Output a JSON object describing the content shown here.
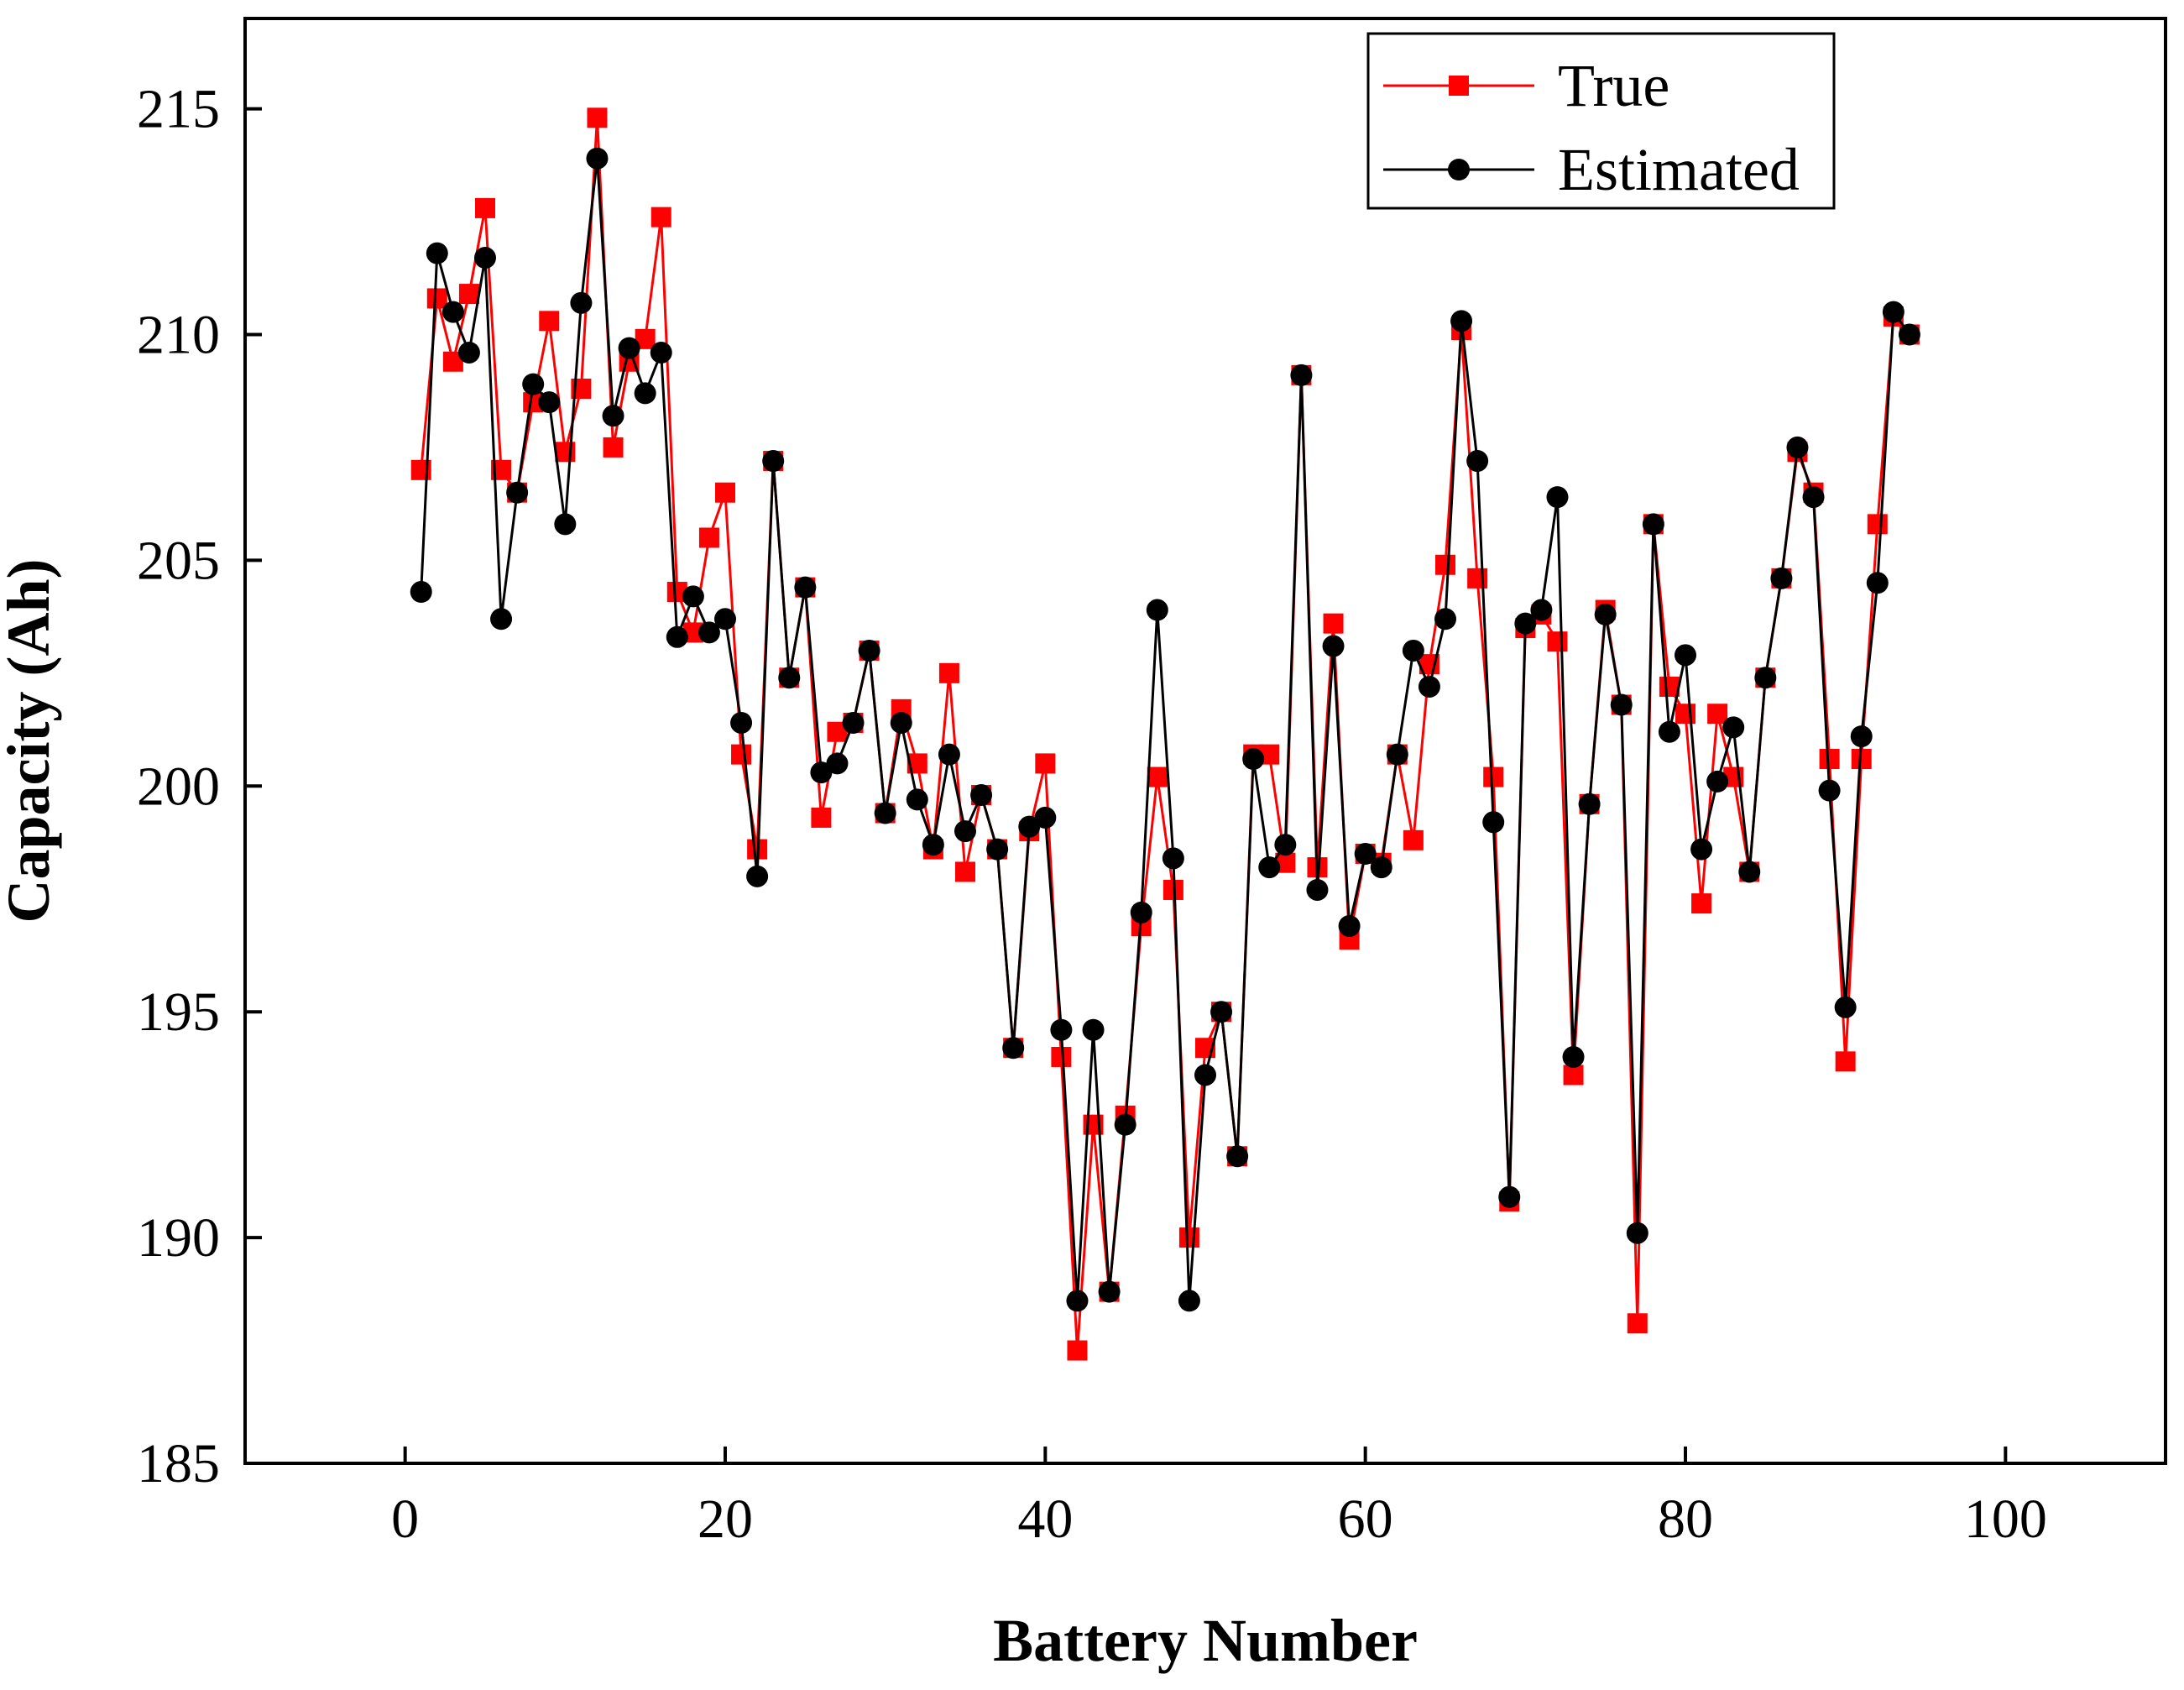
{
  "chart_data": {
    "type": "line",
    "title": "",
    "xlabel": "Battery Number",
    "ylabel": "Capacity (Ah)",
    "xlim": [
      -10,
      110
    ],
    "ylim": [
      185,
      217
    ],
    "xticks": [
      0,
      20,
      40,
      60,
      80,
      100
    ],
    "yticks": [
      185,
      190,
      195,
      200,
      205,
      210,
      215
    ],
    "xtick_labels": [
      "0",
      "20",
      "40",
      "60",
      "80",
      "100"
    ],
    "ytick_labels": [
      "185",
      "190",
      "195",
      "200",
      "205",
      "210",
      "215"
    ],
    "legend_position": "top-right",
    "x": [
      1,
      2,
      3,
      4,
      5,
      6,
      7,
      8,
      9,
      10,
      11,
      12,
      13,
      14,
      15,
      16,
      17,
      18,
      19,
      20,
      21,
      22,
      23,
      24,
      25,
      26,
      27,
      28,
      29,
      30,
      31,
      32,
      33,
      34,
      35,
      36,
      37,
      38,
      39,
      40,
      41,
      42,
      43,
      44,
      45,
      46,
      47,
      48,
      49,
      50,
      51,
      52,
      53,
      54,
      55,
      56,
      57,
      58,
      59,
      60,
      61,
      62,
      63,
      64,
      65,
      66,
      67,
      68,
      69,
      70,
      71,
      72,
      73,
      74,
      75,
      76,
      77,
      78,
      79,
      80,
      81,
      82,
      83,
      84,
      85,
      86,
      87,
      88,
      89,
      90,
      91,
      92,
      93,
      94
    ],
    "series": [
      {
        "name": "True",
        "color": "#ff0000",
        "marker": "square",
        "values": [
          207.0,
          210.8,
          209.4,
          210.9,
          212.8,
          207.0,
          206.5,
          208.5,
          210.3,
          207.4,
          208.8,
          214.8,
          207.5,
          209.4,
          209.9,
          212.6,
          204.3,
          203.4,
          205.5,
          206.5,
          200.7,
          198.6,
          207.2,
          202.4,
          204.4,
          199.3,
          201.2,
          201.4,
          203.0,
          199.4,
          201.7,
          200.5,
          198.6,
          202.5,
          198.1,
          199.8,
          198.6,
          194.2,
          199.0,
          200.5,
          194.0,
          187.5,
          192.5,
          188.8,
          192.7,
          196.9,
          200.2,
          197.7,
          190.0,
          194.2,
          195.0,
          191.8,
          200.7,
          200.7,
          198.3,
          209.1,
          198.2,
          203.6,
          196.6,
          198.5,
          198.3,
          200.7,
          198.8,
          202.7,
          204.9,
          210.1,
          204.6,
          200.2,
          190.8,
          203.5,
          203.8,
          203.2,
          193.6,
          199.6,
          203.9,
          201.8,
          188.1,
          205.8,
          202.2,
          201.6,
          197.4,
          201.6,
          200.2,
          198.1,
          202.4,
          204.6,
          207.4,
          206.5,
          200.6,
          193.9,
          200.6,
          205.8,
          210.4,
          210.0
        ]
      },
      {
        "name": "Estimated",
        "color": "#000000",
        "marker": "circle",
        "values": [
          204.3,
          211.8,
          210.5,
          209.6,
          211.7,
          203.7,
          206.5,
          208.9,
          208.5,
          205.8,
          210.7,
          213.9,
          208.2,
          209.7,
          208.7,
          209.6,
          203.3,
          204.2,
          203.4,
          203.7,
          201.4,
          198.0,
          207.2,
          202.4,
          204.4,
          200.3,
          200.5,
          201.4,
          203.0,
          199.4,
          201.4,
          199.7,
          198.7,
          200.7,
          199.0,
          199.8,
          198.6,
          194.2,
          199.1,
          199.3,
          194.6,
          188.6,
          194.6,
          188.8,
          192.5,
          197.2,
          203.9,
          198.4,
          188.6,
          193.6,
          195.0,
          191.8,
          200.6,
          198.2,
          198.7,
          209.1,
          197.7,
          203.1,
          196.9,
          198.5,
          198.2,
          200.7,
          203.0,
          202.2,
          203.7,
          210.3,
          207.2,
          199.2,
          190.9,
          203.6,
          203.9,
          206.4,
          194.0,
          199.6,
          203.8,
          201.8,
          190.1,
          205.8,
          201.2,
          202.9,
          198.6,
          200.1,
          201.3,
          198.1,
          202.4,
          204.6,
          207.5,
          206.4,
          199.9,
          195.1,
          201.1,
          204.5,
          210.5,
          210.0
        ]
      }
    ]
  }
}
